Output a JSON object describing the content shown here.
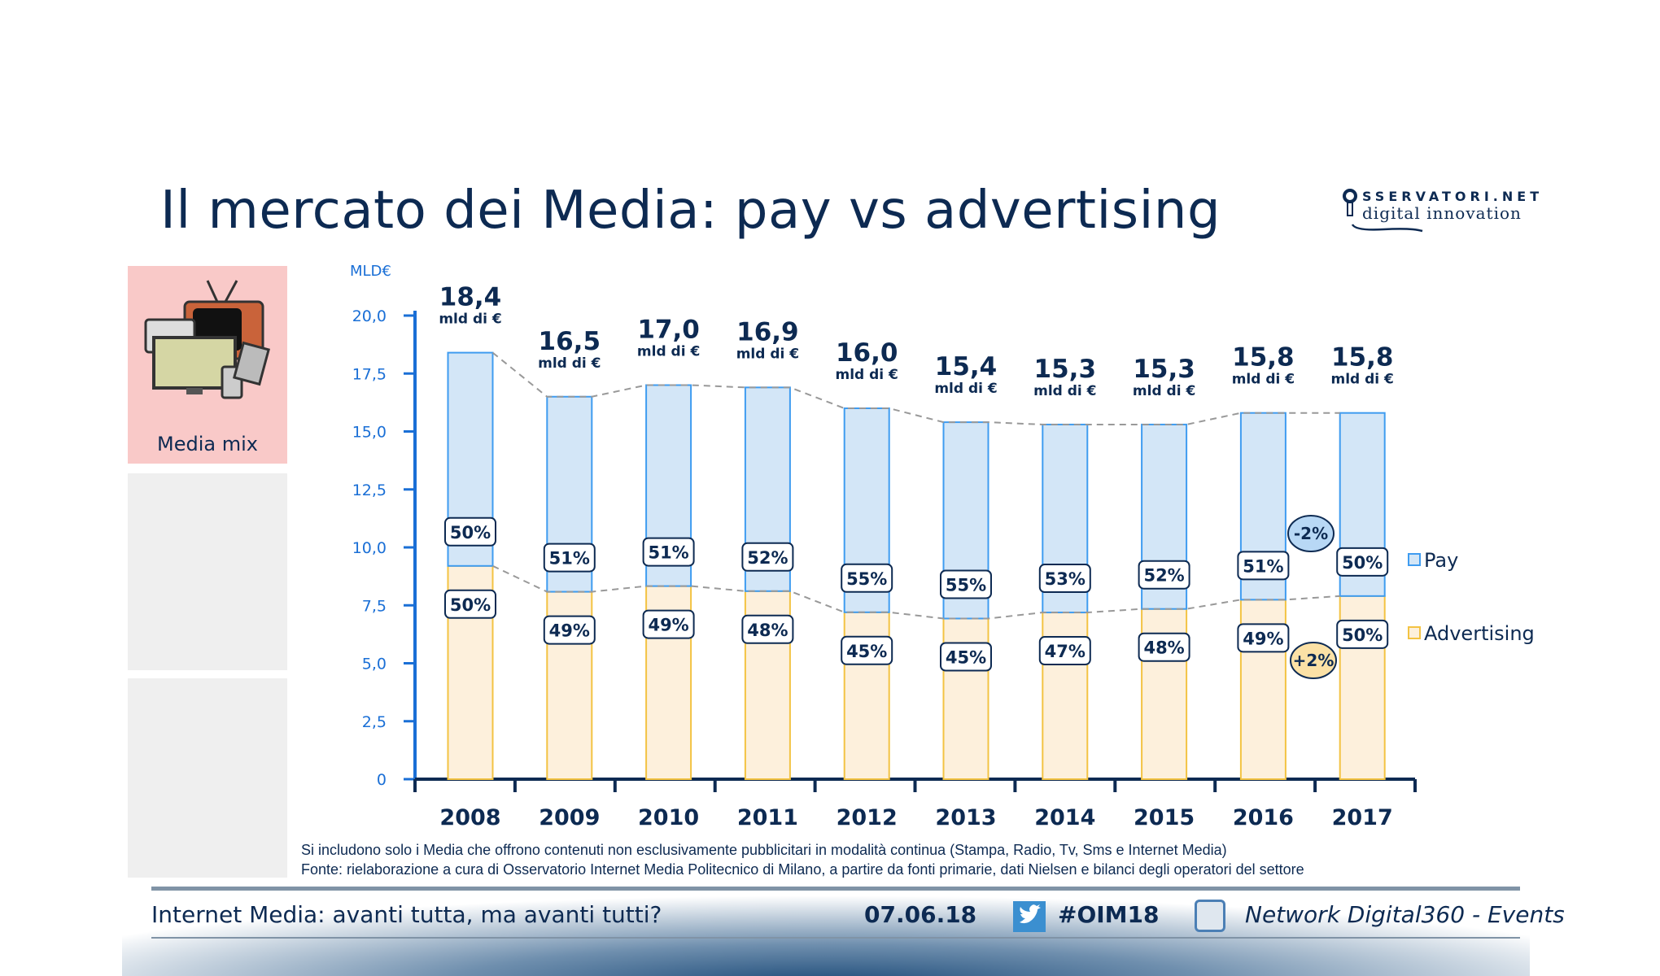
{
  "title": "Il mercato dei Media: pay vs advertising",
  "logo": {
    "line1": "SSERVATORI.NET",
    "line2": "digital innovation"
  },
  "sidebar": {
    "active_label": "Media mix"
  },
  "colors": {
    "pay_fill": "#d3e6f7",
    "pay_stroke": "#3f9cf0",
    "adv_fill": "#fdf0dc",
    "adv_stroke": "#f3c343",
    "axis": "#1a6fd6",
    "text": "#0d2a52"
  },
  "chart_data": {
    "type": "bar",
    "stacked": true,
    "ylabel": "MLD€",
    "ylim": [
      0,
      20
    ],
    "yticks": [
      "0",
      "2,5",
      "5,0",
      "7,5",
      "10,0",
      "12,5",
      "15,0",
      "17,5",
      "20,0"
    ],
    "categories": [
      "2008",
      "2009",
      "2010",
      "2011",
      "2012",
      "2013",
      "2014",
      "2015",
      "2016",
      "2017"
    ],
    "totals": [
      18.4,
      16.5,
      17.0,
      16.9,
      16.0,
      15.4,
      15.3,
      15.3,
      15.8,
      15.8
    ],
    "total_labels": [
      "18,4",
      "16,5",
      "17,0",
      "16,9",
      "16,0",
      "15,4",
      "15,3",
      "15,3",
      "15,8",
      "15,8"
    ],
    "total_unit": "mld di €",
    "series": [
      {
        "name": "Advertising",
        "share_pct": [
          50,
          49,
          49,
          48,
          45,
          45,
          47,
          48,
          49,
          50
        ],
        "labels": [
          "50%",
          "49%",
          "49%",
          "48%",
          "45%",
          "45%",
          "47%",
          "48%",
          "49%",
          "50%"
        ]
      },
      {
        "name": "Pay",
        "share_pct": [
          50,
          51,
          51,
          52,
          55,
          55,
          53,
          52,
          51,
          50
        ],
        "labels": [
          "50%",
          "51%",
          "51%",
          "52%",
          "55%",
          "55%",
          "53%",
          "52%",
          "51%",
          "50%"
        ]
      }
    ],
    "annotations": {
      "pay_change": "-2%",
      "adv_change": "+2%"
    },
    "legend": [
      "Pay",
      "Advertising"
    ],
    "legend_position": "right",
    "grid": false
  },
  "notes": [
    "Si includono solo i Media che offrono contenuti non esclusivamente pubblicitari in modalità continua (Stampa, Radio, Tv, Sms e  Internet Media)",
    "Fonte: rielaborazione a cura di Osservatorio Internet Media Politecnico di Milano, a partire da fonti primarie, dati Nielsen e bilanci degli operatori del settore"
  ],
  "footer": {
    "event_title": "Internet Media: avanti tutta, ma avanti tutti?",
    "date": "07.06.18",
    "hashtag": "#OIM18",
    "organizer": "Network Digital360 - Events"
  }
}
